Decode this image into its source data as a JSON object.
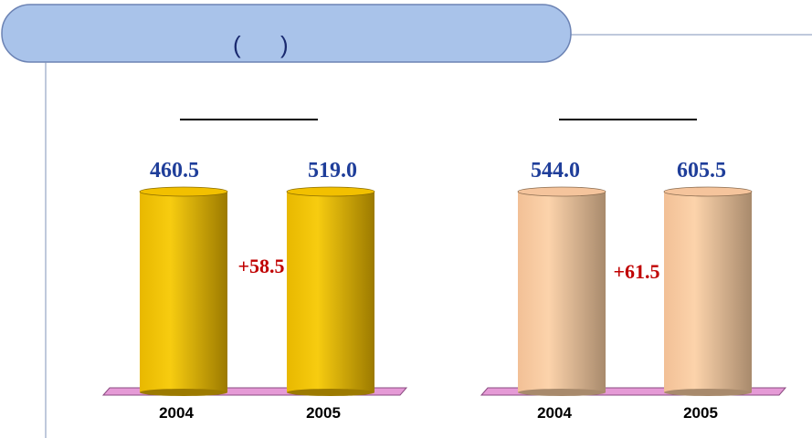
{
  "header": {
    "title": "(      )"
  },
  "panels": [
    {
      "bars": [
        {
          "label": "2004",
          "value": "460.5"
        },
        {
          "label": "2005",
          "value": "519.0"
        }
      ],
      "change": "+58.5"
    },
    {
      "bars": [
        {
          "label": "2004",
          "value": "544.0"
        },
        {
          "label": "2005",
          "value": "605.5"
        }
      ],
      "change": "+61.5"
    }
  ]
}
